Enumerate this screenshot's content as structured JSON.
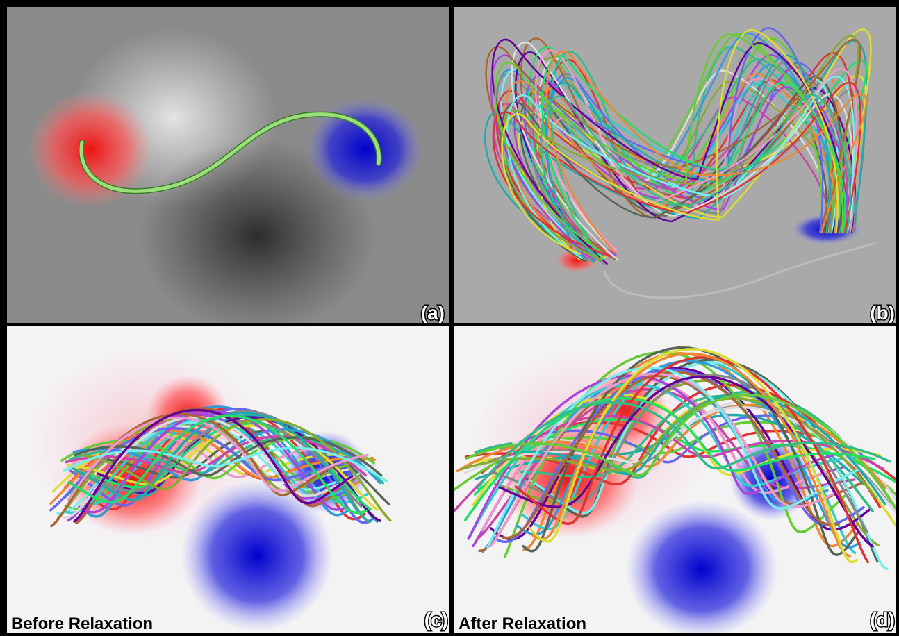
{
  "panels": [
    {
      "label": "(a)"
    },
    {
      "label": "(b)"
    },
    {
      "label": "(c)",
      "caption": "Before Relaxation"
    },
    {
      "label": "(d)",
      "caption": "After Relaxation"
    }
  ]
}
